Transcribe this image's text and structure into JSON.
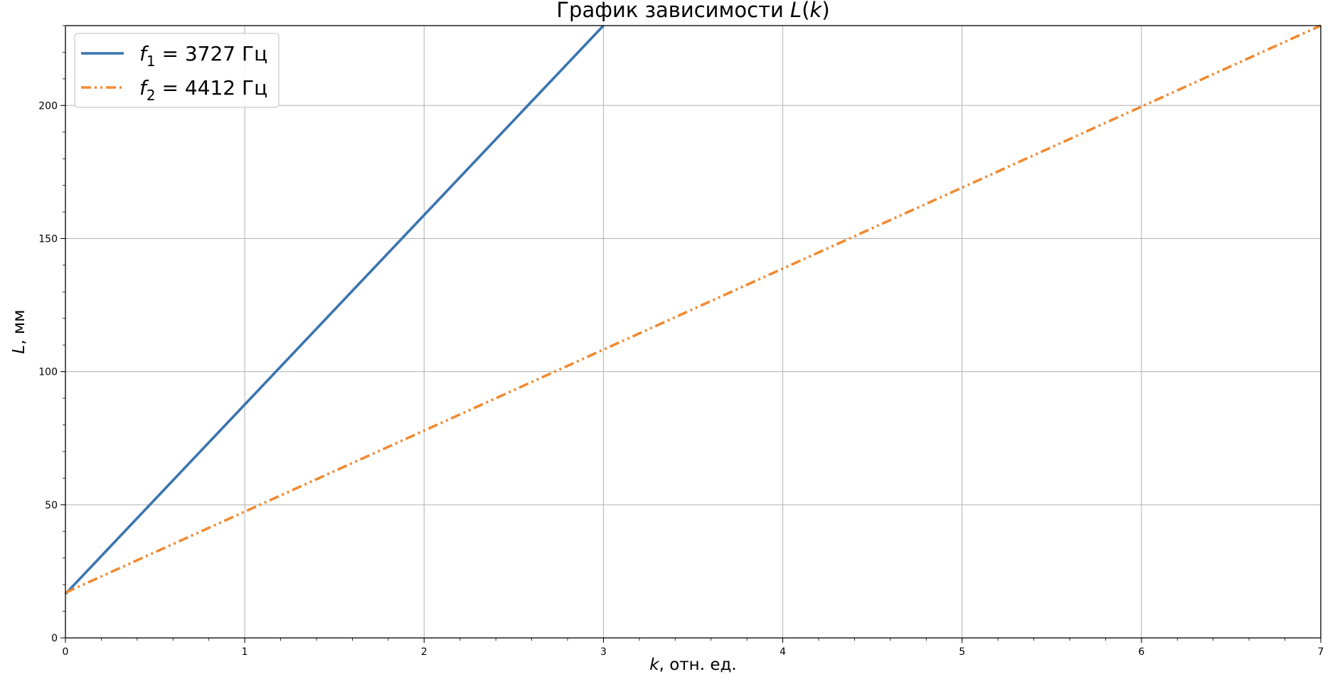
{
  "chart_data": {
    "type": "line",
    "title": {
      "prefix": "График зависимости ",
      "var": "L",
      "open": "(",
      "arg": "k",
      "close": ")"
    },
    "xlabel": {
      "var": "k",
      "rest": ", отн. ед."
    },
    "ylabel": {
      "var": "L",
      "rest": ", мм"
    },
    "xlim": [
      0,
      7
    ],
    "ylim": [
      0,
      230
    ],
    "xticks": [
      "0",
      "1",
      "2",
      "3",
      "4",
      "5",
      "6",
      "7"
    ],
    "yticks": [
      "0",
      "50",
      "100",
      "150",
      "200"
    ],
    "grid": true,
    "legend_position": "top-left",
    "series": [
      {
        "symbol": "f",
        "sub": "1",
        "eq": " = 3727 Гц",
        "color": "#3a74b0",
        "style": "solid",
        "x": [
          0,
          3
        ],
        "y": [
          16.5,
          230
        ]
      },
      {
        "symbol": "f",
        "sub": "2",
        "eq": " = 4412 Гц",
        "color": "#f08a30",
        "style": "dashdotdot",
        "x": [
          0,
          7
        ],
        "y": [
          17,
          230
        ]
      }
    ]
  }
}
